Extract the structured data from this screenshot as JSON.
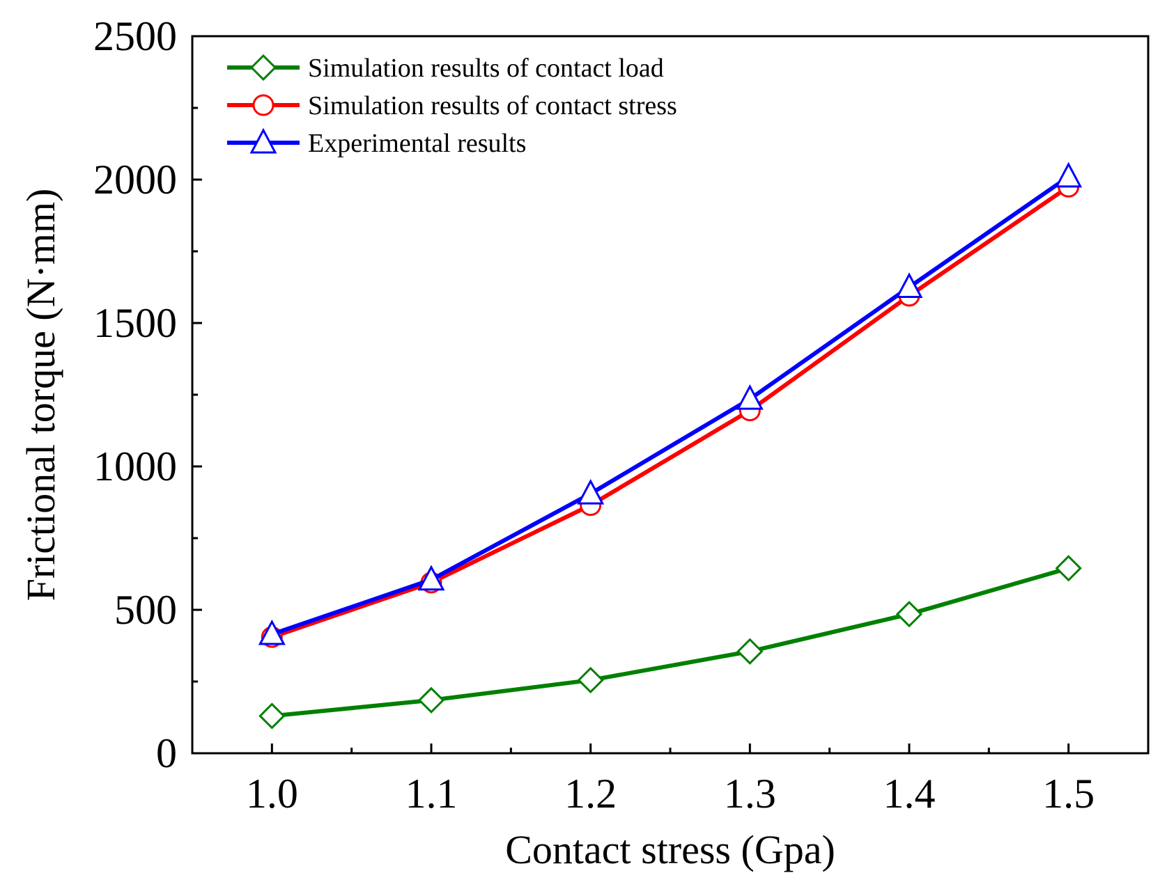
{
  "chart_data": {
    "type": "line",
    "title": "",
    "xlabel": "Contact stress (Gpa)",
    "ylabel": "Frictional torque (N·mm)",
    "x": [
      1.0,
      1.1,
      1.2,
      1.3,
      1.4,
      1.5
    ],
    "x_tick_labels": [
      "1.0",
      "1.1",
      "1.2",
      "1.3",
      "1.4",
      "1.5"
    ],
    "xlim": [
      0.95,
      1.55
    ],
    "ylim": [
      0,
      2500
    ],
    "y_ticks": [
      0,
      500,
      1000,
      1500,
      2000,
      2500
    ],
    "y_tick_labels": [
      "0",
      "500",
      "1000",
      "1500",
      "2000",
      "2500"
    ],
    "grid": false,
    "legend_position": "top-left",
    "series": [
      {
        "name": "Simulation results of contact load",
        "color": "#008000",
        "marker": "diamond",
        "values": [
          130,
          185,
          255,
          355,
          485,
          645
        ]
      },
      {
        "name": "Simulation results of contact stress",
        "color": "#ff0000",
        "marker": "circle",
        "values": [
          405,
          595,
          865,
          1195,
          1595,
          1975
        ]
      },
      {
        "name": "Experimental results",
        "color": "#0000ff",
        "marker": "triangle",
        "values": [
          415,
          605,
          905,
          1235,
          1625,
          2010
        ]
      }
    ]
  }
}
